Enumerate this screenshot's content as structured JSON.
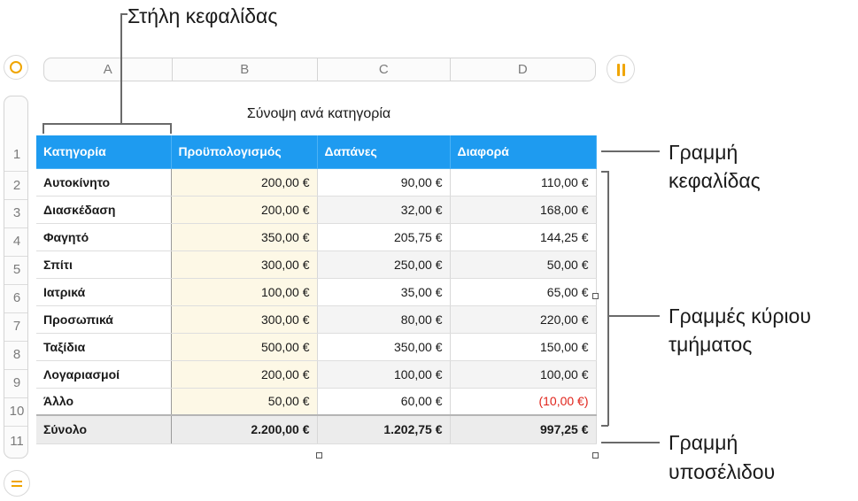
{
  "columns": [
    "A",
    "B",
    "C",
    "D"
  ],
  "rows": [
    "1",
    "2",
    "3",
    "4",
    "5",
    "6",
    "7",
    "8",
    "9",
    "10",
    "11"
  ],
  "table": {
    "title": "Σύνοψη ανά κατηγορία",
    "headers": [
      "Κατηγορία",
      "Προϋπολογισμός",
      "Δαπάνες",
      "Διαφορά"
    ],
    "body": [
      [
        "Αυτοκίνητο",
        "200,00 €",
        "90,00 €",
        "110,00 €"
      ],
      [
        "Διασκέδαση",
        "200,00 €",
        "32,00 €",
        "168,00 €"
      ],
      [
        "Φαγητό",
        "350,00 €",
        "205,75 €",
        "144,25 €"
      ],
      [
        "Σπίτι",
        "300,00 €",
        "250,00 €",
        "50,00 €"
      ],
      [
        "Ιατρικά",
        "100,00 €",
        "35,00 €",
        "65,00 €"
      ],
      [
        "Προσωπικά",
        "300,00 €",
        "80,00 €",
        "220,00 €"
      ],
      [
        "Ταξίδια",
        "500,00 €",
        "350,00 €",
        "150,00 €"
      ],
      [
        "Λογαριασμοί",
        "200,00 €",
        "100,00 €",
        "100,00 €"
      ],
      [
        "Άλλο",
        "50,00 €",
        "60,00 €",
        "(10,00 €)"
      ]
    ],
    "footer": [
      "Σύνολο",
      "2.200,00 €",
      "1.202,75 €",
      "997,25 €"
    ]
  },
  "callouts": {
    "header_column": "Στήλη κεφαλίδας",
    "header_row_1": "Γραμμή",
    "header_row_2": "κεφαλίδας",
    "body_rows_1": "Γραμμές κύριου",
    "body_rows_2": "τμήματος",
    "footer_row_1": "Γραμμή",
    "footer_row_2": "υποσέλιδου"
  },
  "colors": {
    "header_bg": "#1e9bf0",
    "accent": "#f0a500",
    "negative": "#e0241b"
  }
}
